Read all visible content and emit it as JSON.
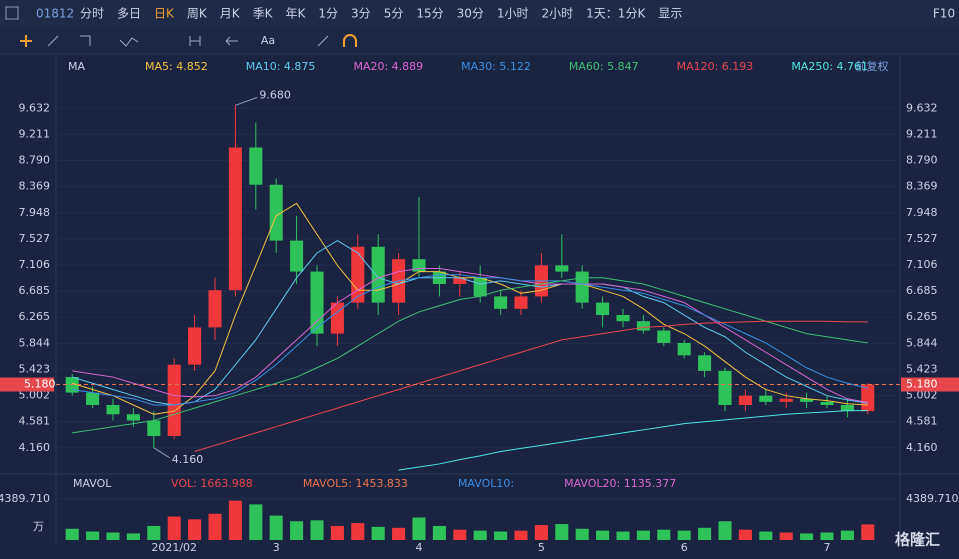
{
  "toolbar": {
    "code": "01812",
    "periods": [
      "分时",
      "多日",
      "日K",
      "周K",
      "月K",
      "季K",
      "年K",
      "1分",
      "3分",
      "5分",
      "15分",
      "30分",
      "1小时",
      "2小时",
      "1天：1分K",
      "显示"
    ],
    "f10": "F10",
    "text_tool": "Aa"
  },
  "chart_data": {
    "type": "candlestick",
    "indicator": "MA",
    "adjust": "前复权",
    "categories": [
      null,
      null,
      null,
      null,
      null,
      "2021/02",
      null,
      null,
      null,
      null,
      "3",
      null,
      null,
      null,
      null,
      null,
      null,
      "4",
      null,
      null,
      null,
      null,
      null,
      "5",
      null,
      null,
      null,
      null,
      null,
      null,
      "6",
      null,
      null,
      null,
      null,
      null,
      null,
      "7",
      null,
      null
    ],
    "open": [
      5.3,
      5.05,
      4.85,
      4.7,
      4.6,
      4.35,
      5.5,
      6.1,
      6.7,
      9.0,
      8.4,
      7.5,
      7.0,
      6.0,
      6.5,
      7.4,
      6.5,
      7.2,
      7.0,
      6.8,
      6.9,
      6.6,
      6.4,
      6.6,
      7.1,
      7.0,
      6.5,
      6.3,
      6.2,
      6.05,
      5.85,
      5.65,
      5.4,
      4.85,
      5.0,
      4.9,
      4.95,
      4.9,
      4.85,
      4.75
    ],
    "high": [
      5.35,
      5.15,
      4.95,
      4.8,
      4.75,
      5.6,
      6.3,
      6.9,
      9.68,
      9.4,
      8.5,
      7.9,
      7.1,
      6.6,
      7.6,
      7.6,
      7.3,
      8.2,
      7.1,
      7.0,
      7.1,
      6.7,
      6.7,
      7.3,
      7.6,
      7.1,
      6.6,
      6.4,
      6.3,
      6.1,
      5.9,
      5.7,
      5.45,
      5.1,
      5.1,
      5.05,
      5.05,
      5.0,
      4.95,
      5.2
    ],
    "low": [
      5.0,
      4.8,
      4.6,
      4.5,
      4.16,
      4.3,
      5.4,
      5.9,
      6.6,
      8.0,
      7.3,
      6.8,
      5.8,
      5.8,
      6.4,
      6.3,
      6.3,
      6.9,
      6.6,
      6.6,
      6.5,
      6.3,
      6.3,
      6.5,
      6.9,
      6.4,
      6.1,
      6.1,
      6.0,
      5.8,
      5.6,
      5.3,
      4.75,
      4.75,
      4.85,
      4.8,
      4.8,
      4.8,
      4.65,
      4.7
    ],
    "close": [
      5.05,
      4.85,
      4.7,
      4.6,
      4.35,
      5.5,
      6.1,
      6.7,
      9.0,
      8.4,
      7.5,
      7.0,
      6.0,
      6.5,
      7.4,
      6.5,
      7.2,
      7.0,
      6.8,
      6.9,
      6.6,
      6.4,
      6.6,
      7.1,
      7.0,
      6.5,
      6.3,
      6.2,
      6.05,
      5.85,
      5.65,
      5.4,
      4.85,
      5.0,
      4.9,
      4.95,
      4.9,
      4.85,
      4.75,
      5.18
    ],
    "up_color": "#f0383c",
    "down_color": "#2fc25b",
    "series": [
      {
        "name": "MA5: 4.852",
        "color": "#f5c242",
        "values": [
          5.2,
          5.1,
          5.0,
          4.85,
          4.7,
          4.75,
          5.0,
          5.4,
          6.3,
          7.1,
          7.9,
          8.1,
          7.6,
          7.1,
          6.7,
          6.7,
          6.8,
          7.0,
          7.0,
          6.9,
          6.9,
          6.8,
          6.65,
          6.7,
          6.8,
          6.8,
          6.7,
          6.6,
          6.4,
          6.15,
          6.0,
          5.8,
          5.55,
          5.3,
          5.1,
          5.0,
          4.95,
          4.92,
          4.87,
          4.85
        ]
      },
      {
        "name": "MA10: 4.875",
        "color": "#5ec8f2",
        "values": [
          5.3,
          5.2,
          5.1,
          5.0,
          4.9,
          4.85,
          4.9,
          5.1,
          5.5,
          5.9,
          6.4,
          6.9,
          7.3,
          7.5,
          7.3,
          6.9,
          6.8,
          6.9,
          6.9,
          6.9,
          6.8,
          6.85,
          6.8,
          6.75,
          6.8,
          6.8,
          6.8,
          6.75,
          6.6,
          6.5,
          6.3,
          6.1,
          5.95,
          5.7,
          5.5,
          5.3,
          5.15,
          5.0,
          4.93,
          4.88
        ]
      },
      {
        "name": "MA20: 4.889",
        "color": "#d966d6",
        "values": [
          5.4,
          5.35,
          5.3,
          5.2,
          5.1,
          5.0,
          4.98,
          5.0,
          5.1,
          5.3,
          5.6,
          5.9,
          6.2,
          6.5,
          6.7,
          6.9,
          7.0,
          7.05,
          7.05,
          7.0,
          6.95,
          6.9,
          6.85,
          6.8,
          6.8,
          6.8,
          6.8,
          6.75,
          6.7,
          6.6,
          6.5,
          6.3,
          6.1,
          5.9,
          5.7,
          5.5,
          5.3,
          5.1,
          4.95,
          4.89
        ]
      },
      {
        "name": "MA30: 5.122",
        "color": "#3a8ee6",
        "values": [
          5.1,
          5.05,
          5.0,
          4.95,
          4.85,
          4.85,
          4.9,
          4.95,
          5.05,
          5.25,
          5.5,
          5.8,
          6.1,
          6.35,
          6.6,
          6.75,
          6.85,
          6.9,
          6.95,
          6.95,
          6.9,
          6.9,
          6.85,
          6.85,
          6.85,
          6.8,
          6.75,
          6.7,
          6.65,
          6.55,
          6.45,
          6.3,
          6.15,
          6.0,
          5.85,
          5.65,
          5.45,
          5.3,
          5.2,
          5.12
        ]
      },
      {
        "name": "MA60: 5.847",
        "color": "#3fbf6f",
        "values": [
          4.4,
          4.45,
          4.5,
          4.55,
          4.6,
          4.7,
          4.8,
          4.9,
          5.0,
          5.1,
          5.2,
          5.3,
          5.45,
          5.6,
          5.8,
          6.0,
          6.2,
          6.35,
          6.45,
          6.55,
          6.6,
          6.7,
          6.75,
          6.8,
          6.85,
          6.9,
          6.9,
          6.85,
          6.8,
          6.7,
          6.6,
          6.5,
          6.4,
          6.3,
          6.2,
          6.1,
          6.0,
          5.95,
          5.9,
          5.85
        ]
      },
      {
        "name": "MA120: 6.193",
        "color": "#e8474b",
        "values": [
          null,
          null,
          null,
          null,
          null,
          null,
          4.1,
          4.2,
          4.3,
          4.4,
          4.5,
          4.6,
          4.7,
          4.8,
          4.9,
          5.0,
          5.1,
          5.2,
          5.3,
          5.4,
          5.5,
          5.6,
          5.7,
          5.8,
          5.9,
          5.95,
          6.0,
          6.05,
          6.1,
          6.12,
          6.15,
          6.17,
          6.18,
          6.19,
          6.2,
          6.2,
          6.2,
          6.2,
          6.19,
          6.19
        ]
      },
      {
        "name": "MA250: 4.761",
        "color": "#4fe3e3",
        "values": [
          null,
          null,
          null,
          null,
          null,
          null,
          null,
          null,
          null,
          null,
          null,
          null,
          null,
          null,
          null,
          null,
          3.8,
          3.85,
          3.9,
          3.97,
          4.03,
          4.1,
          4.15,
          4.2,
          4.25,
          4.3,
          4.35,
          4.4,
          4.45,
          4.5,
          4.55,
          4.58,
          4.61,
          4.64,
          4.67,
          4.7,
          4.72,
          4.74,
          4.76,
          4.76
        ]
      }
    ],
    "ylim": [
      3.77,
      10.12
    ],
    "yticks": [
      9.632,
      9.211,
      {
        "value": 8.79,
        "label": "8.790"
      },
      8.369,
      7.948,
      7.527,
      7.106,
      6.685,
      6.265,
      5.844,
      5.423,
      5.002,
      4.581,
      {
        "value": 4.16,
        "label": "4.160"
      }
    ],
    "grid": true,
    "high_label": {
      "value": 9.68,
      "label": "9.680"
    },
    "low_label": {
      "value": 4.16,
      "label": "4.160"
    },
    "last_price": {
      "value": 5.18,
      "label": "5.180"
    },
    "volume": {
      "indicator": "MAVOL",
      "legend": [
        "VOL: 1663.988",
        "MAVOL5: 1453.833",
        "MAVOL10:",
        "MAVOL20: 1135.377"
      ],
      "values": [
        1200,
        900,
        800,
        700,
        1500,
        2500,
        2200,
        2800,
        4200,
        3800,
        2600,
        2000,
        2100,
        1500,
        1800,
        1400,
        1300,
        2400,
        1500,
        1100,
        1000,
        900,
        1000,
        1600,
        1700,
        1200,
        1000,
        900,
        1000,
        1100,
        1000,
        1300,
        2000,
        1100,
        900,
        800,
        700,
        800,
        1000,
        1663.988
      ],
      "ylim": [
        0,
        4800
      ],
      "yticks": [
        {
          "value": 4389.71,
          "label": "4389.710"
        }
      ],
      "unit": "万"
    }
  },
  "watermark": "格隆汇"
}
